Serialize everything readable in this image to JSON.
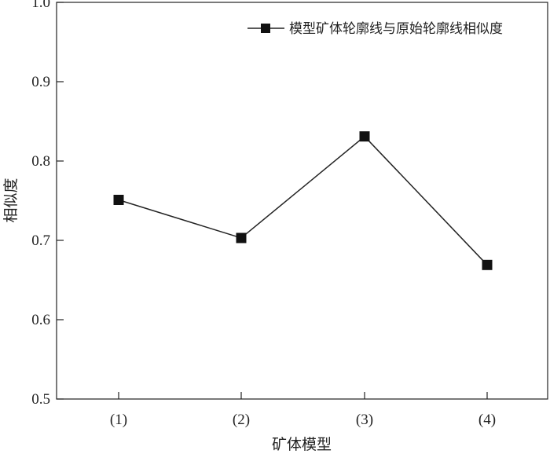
{
  "chart_data": {
    "type": "line",
    "categories": [
      "(1)",
      "(2)",
      "(3)",
      "(4)"
    ],
    "series": [
      {
        "name": "模型矿体轮廓线与原始轮廓线相似度",
        "values": [
          0.751,
          0.703,
          0.831,
          0.669
        ]
      }
    ],
    "y_ticks": [
      "0.5",
      "0.6",
      "0.7",
      "0.8",
      "0.9",
      "1.0"
    ],
    "xlabel": "矿体模型",
    "ylabel": "相似度",
    "ylim": [
      0.5,
      1.0
    ],
    "grid": false,
    "legend_position": "top-right",
    "colors": {
      "line": "#222222",
      "marker": "#111111",
      "axis": "#222222"
    }
  }
}
